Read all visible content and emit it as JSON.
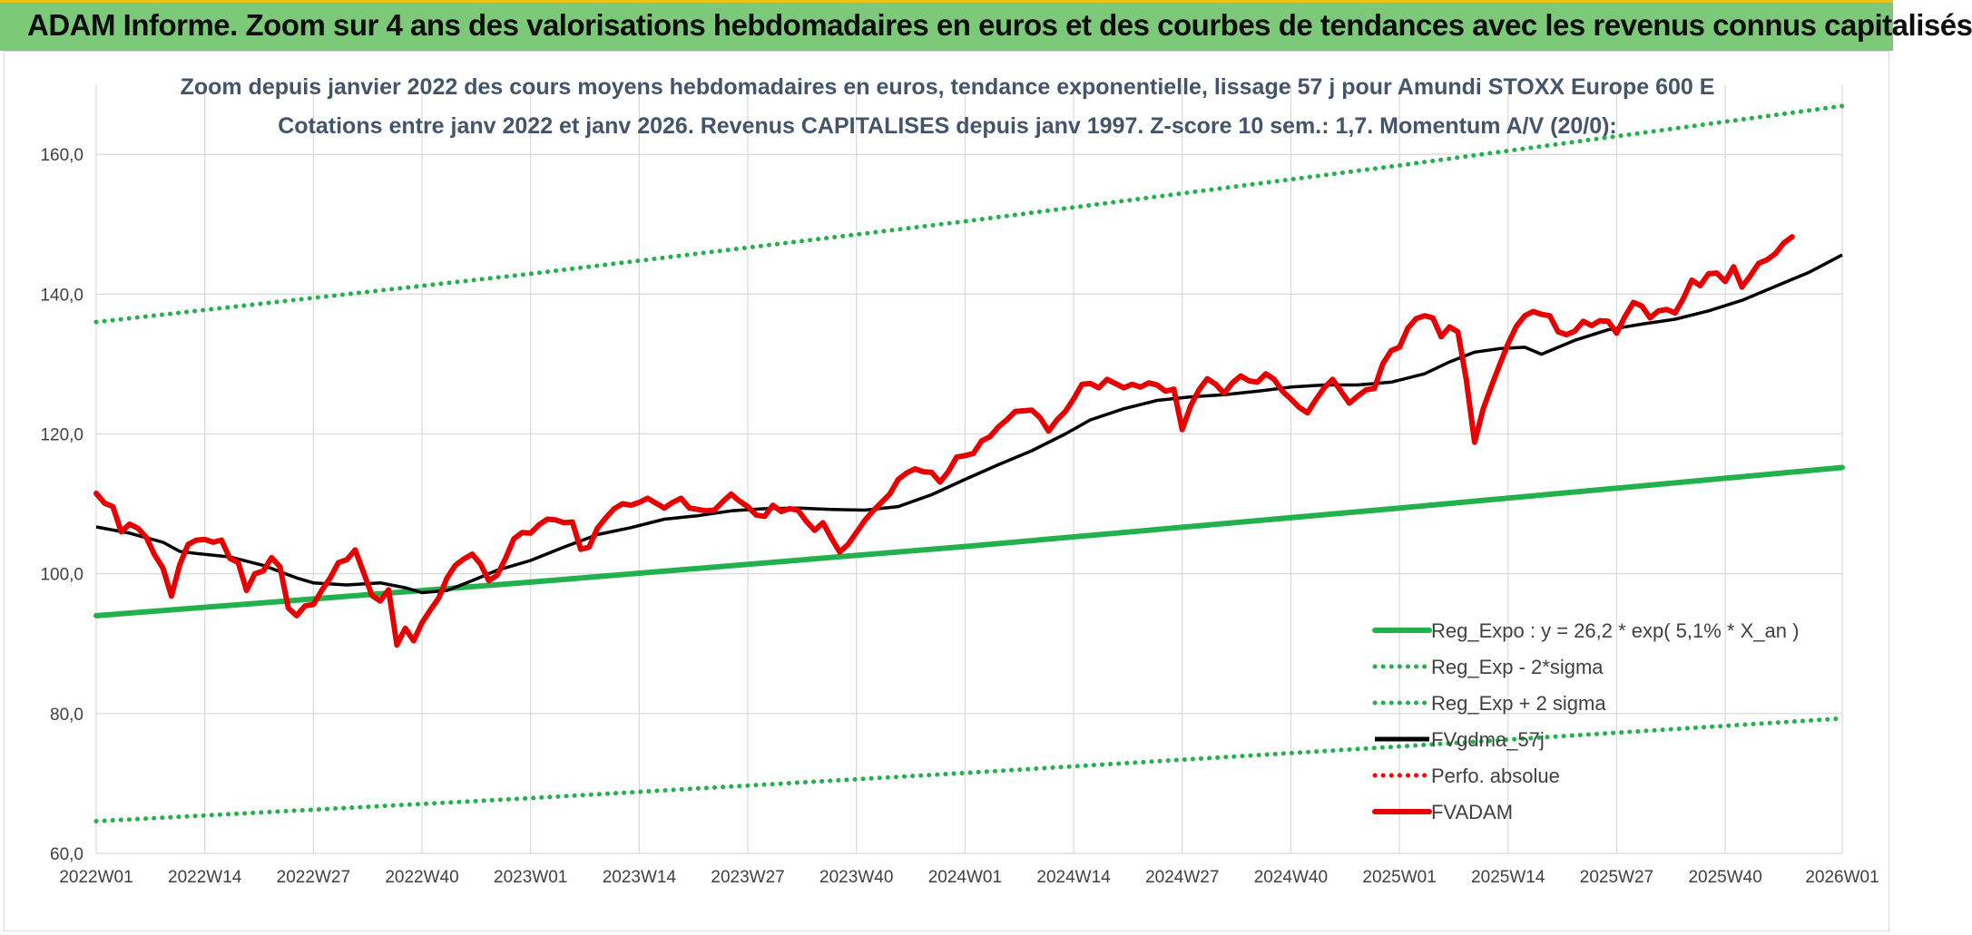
{
  "header": {
    "title": "ADAM Informe. Zoom sur 4 ans des valorisations hebdomadaires en euros et des courbes de tendances avec les revenus connus capitalisés"
  },
  "colors": {
    "header_bg": "#7cc97a",
    "header_border": "#e8c21a",
    "regression": "#22b14c",
    "band": "#22b14c",
    "smooth": "#000000",
    "perf": "#ff0000",
    "fvadam": "#e60000",
    "grid": "#d9d9d9"
  },
  "chart_data": {
    "type": "line",
    "title": [
      "Zoom depuis janvier 2022 des cours moyens hebdomadaires en euros, tendance exponentielle, lissage 57 j pour Amundi STOXX Europe 600 E",
      "Cotations entre janv 2022 et janv 2026. Revenus CAPITALISES depuis janv 1997. Z-score 10 sem.: 1,7. Momentum A/V (20/0):"
    ],
    "ylim": [
      60,
      170
    ],
    "yticks": [
      "60,0",
      "80,0",
      "100,0",
      "120,0",
      "140,0",
      "160,0"
    ],
    "ytick_values": [
      60,
      80,
      100,
      120,
      140,
      160
    ],
    "xlim": [
      0,
      209
    ],
    "xticks": [
      "2022W01",
      "2022W14",
      "2022W27",
      "2022W40",
      "2023W01",
      "2023W14",
      "2023W27",
      "2023W40",
      "2024W01",
      "2024W14",
      "2024W27",
      "2024W40",
      "2025W01",
      "2025W14",
      "2025W27",
      "2025W40",
      "2026W01"
    ],
    "xtick_values": [
      0,
      13,
      26,
      39,
      52,
      65,
      78,
      91,
      104,
      117,
      130,
      143,
      156,
      169,
      182,
      195,
      209
    ],
    "grid": true,
    "legend_position": "bottom-right",
    "series": [
      {
        "name": "Reg_Expo : y = 26,2 * exp( 5,1% *  X_an )",
        "style": "solid-thick",
        "color": "#22b14c",
        "points": [
          [
            0,
            94.0
          ],
          [
            52,
            98.8
          ],
          [
            104,
            103.9
          ],
          [
            156,
            109.4
          ],
          [
            209,
            115.2
          ]
        ]
      },
      {
        "name": "Reg_Exp - 2*sigma",
        "style": "dotted",
        "color": "#22b14c",
        "points": [
          [
            0,
            64.6
          ],
          [
            52,
            67.9
          ],
          [
            104,
            71.5
          ],
          [
            156,
            75.3
          ],
          [
            209,
            79.3
          ]
        ]
      },
      {
        "name": "Reg_Exp + 2 sigma",
        "style": "dotted",
        "color": "#22b14c",
        "points": [
          [
            0,
            136.0
          ],
          [
            52,
            142.9
          ],
          [
            104,
            150.4
          ],
          [
            156,
            158.4
          ],
          [
            209,
            166.9
          ]
        ]
      },
      {
        "name": "FVgdma_57j",
        "style": "solid",
        "color": "#000000",
        "points": [
          [
            0,
            106.7
          ],
          [
            4,
            105.8
          ],
          [
            8,
            104.5
          ],
          [
            10,
            103.2
          ],
          [
            12,
            102.9
          ],
          [
            16,
            102.4
          ],
          [
            20,
            101.2
          ],
          [
            24,
            99.4
          ],
          [
            26,
            98.7
          ],
          [
            30,
            98.4
          ],
          [
            34,
            98.7
          ],
          [
            37,
            98.0
          ],
          [
            39,
            97.3
          ],
          [
            42,
            97.6
          ],
          [
            45,
            99.0
          ],
          [
            48,
            100.5
          ],
          [
            52,
            101.9
          ],
          [
            56,
            103.8
          ],
          [
            60,
            105.6
          ],
          [
            64,
            106.6
          ],
          [
            68,
            107.8
          ],
          [
            72,
            108.3
          ],
          [
            76,
            109.0
          ],
          [
            80,
            109.3
          ],
          [
            84,
            109.4
          ],
          [
            88,
            109.2
          ],
          [
            92,
            109.1
          ],
          [
            96,
            109.6
          ],
          [
            100,
            111.3
          ],
          [
            104,
            113.5
          ],
          [
            108,
            115.6
          ],
          [
            112,
            117.6
          ],
          [
            116,
            120.0
          ],
          [
            119,
            122.0
          ],
          [
            123,
            123.6
          ],
          [
            127,
            124.8
          ],
          [
            131,
            125.3
          ],
          [
            135,
            125.6
          ],
          [
            139,
            126.1
          ],
          [
            143,
            126.7
          ],
          [
            147,
            127.0
          ],
          [
            151,
            127.0
          ],
          [
            155,
            127.4
          ],
          [
            159,
            128.6
          ],
          [
            162,
            130.3
          ],
          [
            165,
            131.7
          ],
          [
            168,
            132.2
          ],
          [
            171,
            132.4
          ],
          [
            173,
            131.4
          ],
          [
            177,
            133.4
          ],
          [
            181,
            134.9
          ],
          [
            185,
            135.7
          ],
          [
            189,
            136.4
          ],
          [
            193,
            137.6
          ],
          [
            197,
            139.1
          ],
          [
            201,
            141.1
          ],
          [
            205,
            143.1
          ],
          [
            209,
            145.6
          ]
        ]
      },
      {
        "name": "Perfo. absolue",
        "style": "dotted",
        "color": "#ff0000",
        "points": []
      },
      {
        "name": "FVADAM",
        "style": "solid-thick",
        "color": "#e60000",
        "points": [
          [
            0,
            111.5
          ],
          [
            1,
            110.1
          ],
          [
            2,
            109.6
          ],
          [
            3,
            106.0
          ],
          [
            4,
            107.1
          ],
          [
            5,
            106.5
          ],
          [
            6,
            105.2
          ],
          [
            7,
            102.7
          ],
          [
            8,
            100.8
          ],
          [
            9,
            96.8
          ],
          [
            10,
            101.3
          ],
          [
            11,
            104.2
          ],
          [
            12,
            104.8
          ],
          [
            13,
            104.9
          ],
          [
            14,
            104.5
          ],
          [
            15,
            104.8
          ],
          [
            16,
            102.2
          ],
          [
            17,
            101.6
          ],
          [
            18,
            97.6
          ],
          [
            19,
            100.0
          ],
          [
            20,
            100.4
          ],
          [
            21,
            102.3
          ],
          [
            22,
            101.0
          ],
          [
            23,
            95.1
          ],
          [
            24,
            94.0
          ],
          [
            25,
            95.4
          ],
          [
            26,
            95.6
          ],
          [
            27,
            97.6
          ],
          [
            28,
            99.4
          ],
          [
            29,
            101.6
          ],
          [
            30,
            102.0
          ],
          [
            31,
            103.4
          ],
          [
            32,
            100.2
          ],
          [
            33,
            96.9
          ],
          [
            34,
            96.1
          ],
          [
            35,
            97.7
          ],
          [
            36,
            89.8
          ],
          [
            37,
            92.2
          ],
          [
            38,
            90.4
          ],
          [
            39,
            93.0
          ],
          [
            40,
            94.8
          ],
          [
            41,
            96.5
          ],
          [
            42,
            99.4
          ],
          [
            43,
            101.2
          ],
          [
            44,
            102.1
          ],
          [
            45,
            102.8
          ],
          [
            46,
            101.4
          ],
          [
            47,
            99.0
          ],
          [
            48,
            99.8
          ],
          [
            49,
            102.2
          ],
          [
            50,
            105.0
          ],
          [
            51,
            105.9
          ],
          [
            52,
            105.8
          ],
          [
            53,
            107.0
          ],
          [
            54,
            107.8
          ],
          [
            55,
            107.7
          ],
          [
            56,
            107.3
          ],
          [
            57,
            107.4
          ],
          [
            58,
            103.5
          ],
          [
            59,
            103.8
          ],
          [
            60,
            106.5
          ],
          [
            61,
            108.0
          ],
          [
            62,
            109.3
          ],
          [
            63,
            110.0
          ],
          [
            64,
            109.8
          ],
          [
            65,
            110.2
          ],
          [
            66,
            110.8
          ],
          [
            67,
            110.1
          ],
          [
            68,
            109.4
          ],
          [
            69,
            110.2
          ],
          [
            70,
            110.8
          ],
          [
            71,
            109.4
          ],
          [
            72,
            109.2
          ],
          [
            73,
            109.0
          ],
          [
            74,
            109.1
          ],
          [
            75,
            110.3
          ],
          [
            76,
            111.4
          ],
          [
            77,
            110.4
          ],
          [
            78,
            109.6
          ],
          [
            79,
            108.4
          ],
          [
            80,
            108.2
          ],
          [
            81,
            109.8
          ],
          [
            82,
            108.9
          ],
          [
            83,
            109.3
          ],
          [
            84,
            109.1
          ],
          [
            85,
            107.5
          ],
          [
            86,
            106.2
          ],
          [
            87,
            107.3
          ],
          [
            88,
            105.1
          ],
          [
            89,
            103.1
          ],
          [
            90,
            104.2
          ],
          [
            91,
            105.9
          ],
          [
            92,
            107.6
          ],
          [
            93,
            109.0
          ],
          [
            94,
            110.2
          ],
          [
            95,
            111.4
          ],
          [
            96,
            113.5
          ],
          [
            97,
            114.4
          ],
          [
            98,
            115.0
          ],
          [
            99,
            114.6
          ],
          [
            100,
            114.5
          ],
          [
            101,
            113.1
          ],
          [
            102,
            114.6
          ],
          [
            103,
            116.7
          ],
          [
            104,
            116.9
          ],
          [
            105,
            117.2
          ],
          [
            106,
            119.0
          ],
          [
            107,
            119.6
          ],
          [
            108,
            121.0
          ],
          [
            109,
            122.0
          ],
          [
            110,
            123.2
          ],
          [
            111,
            123.3
          ],
          [
            112,
            123.4
          ],
          [
            113,
            122.3
          ],
          [
            114,
            120.4
          ],
          [
            115,
            122.0
          ],
          [
            116,
            123.2
          ],
          [
            117,
            125.0
          ],
          [
            118,
            127.1
          ],
          [
            119,
            127.2
          ],
          [
            120,
            126.6
          ],
          [
            121,
            127.8
          ],
          [
            122,
            127.2
          ],
          [
            123,
            126.6
          ],
          [
            124,
            127.1
          ],
          [
            125,
            126.7
          ],
          [
            126,
            127.3
          ],
          [
            127,
            127.0
          ],
          [
            128,
            126.1
          ],
          [
            129,
            126.4
          ],
          [
            130,
            120.6
          ],
          [
            131,
            124.0
          ],
          [
            132,
            126.3
          ],
          [
            133,
            127.9
          ],
          [
            134,
            127.1
          ],
          [
            135,
            125.8
          ],
          [
            136,
            127.3
          ],
          [
            137,
            128.3
          ],
          [
            138,
            127.6
          ],
          [
            139,
            127.4
          ],
          [
            140,
            128.6
          ],
          [
            141,
            127.8
          ],
          [
            142,
            126.1
          ],
          [
            143,
            125.0
          ],
          [
            144,
            123.8
          ],
          [
            145,
            123.0
          ],
          [
            146,
            124.9
          ],
          [
            147,
            126.6
          ],
          [
            148,
            127.8
          ],
          [
            149,
            126.1
          ],
          [
            150,
            124.4
          ],
          [
            151,
            125.4
          ],
          [
            152,
            126.3
          ],
          [
            153,
            126.5
          ],
          [
            154,
            130.0
          ],
          [
            155,
            131.9
          ],
          [
            156,
            132.4
          ],
          [
            157,
            135.1
          ],
          [
            158,
            136.5
          ],
          [
            159,
            136.9
          ],
          [
            160,
            136.6
          ],
          [
            161,
            133.9
          ],
          [
            162,
            135.3
          ],
          [
            163,
            134.6
          ],
          [
            164,
            127.8
          ],
          [
            165,
            118.8
          ],
          [
            166,
            123.5
          ],
          [
            167,
            126.8
          ],
          [
            168,
            129.9
          ],
          [
            169,
            132.9
          ],
          [
            170,
            135.4
          ],
          [
            171,
            136.9
          ],
          [
            172,
            137.5
          ],
          [
            173,
            137.1
          ],
          [
            174,
            136.9
          ],
          [
            175,
            134.6
          ],
          [
            176,
            134.2
          ],
          [
            177,
            134.7
          ],
          [
            178,
            136.1
          ],
          [
            179,
            135.5
          ],
          [
            180,
            136.2
          ],
          [
            181,
            136.1
          ],
          [
            182,
            134.4
          ],
          [
            183,
            136.8
          ],
          [
            184,
            138.8
          ],
          [
            185,
            138.3
          ],
          [
            186,
            136.6
          ],
          [
            187,
            137.6
          ],
          [
            188,
            137.8
          ],
          [
            189,
            137.3
          ],
          [
            190,
            139.4
          ],
          [
            191,
            142.0
          ],
          [
            192,
            141.2
          ],
          [
            193,
            142.9
          ],
          [
            194,
            143.0
          ],
          [
            195,
            141.8
          ],
          [
            196,
            143.9
          ],
          [
            197,
            141.0
          ],
          [
            198,
            142.6
          ],
          [
            199,
            144.4
          ],
          [
            200,
            144.9
          ],
          [
            201,
            145.8
          ],
          [
            202,
            147.3
          ],
          [
            203,
            148.2
          ]
        ]
      }
    ]
  }
}
